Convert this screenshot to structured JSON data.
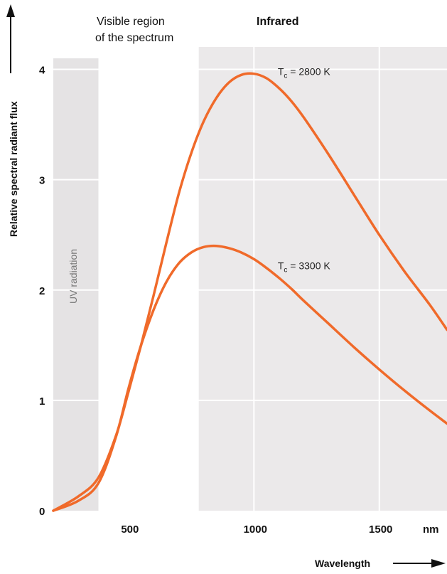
{
  "chart_data": {
    "type": "line",
    "xlabel": "Wavelength",
    "ylabel": "Relative spectral radiant flux",
    "x_unit": "nm",
    "xlim": [
      200,
      1770
    ],
    "ylim": [
      0,
      4.1
    ],
    "xticks": [
      500,
      1000,
      1500
    ],
    "yticks": [
      0,
      1,
      2,
      3,
      4
    ],
    "grid": true,
    "legend": "none",
    "colors": {
      "curve": "#f06a2a",
      "infrared_band": "#ebe9ea",
      "uv_band": "#e5e3e4",
      "visible_band": "#ffffff",
      "grid": "#ffffff"
    },
    "regions": [
      {
        "label": "UV radiation",
        "from": 200,
        "to": 380
      },
      {
        "label": "Visible region of the spectrum",
        "label_lines": [
          "Visible region",
          "of the spectrum"
        ],
        "from": 380,
        "to": 780
      },
      {
        "label": "Infrared",
        "from": 780,
        "to": 1770
      }
    ],
    "series": [
      {
        "name": "Tc = 2800 K",
        "label_parts": {
          "prefix": "T",
          "sub": "c",
          "suffix": " = 2800 K"
        },
        "label_at": {
          "x": 1095,
          "y": 3.95
        },
        "x": [
          200,
          300,
          380,
          450,
          500,
          550,
          600,
          650,
          700,
          750,
          800,
          850,
          900,
          950,
          1000,
          1050,
          1100,
          1150,
          1200,
          1300,
          1400,
          1500,
          1600,
          1700,
          1770
        ],
        "y": [
          0,
          0.13,
          0.3,
          0.68,
          1.08,
          1.5,
          1.95,
          2.42,
          2.87,
          3.24,
          3.53,
          3.74,
          3.88,
          3.95,
          3.96,
          3.92,
          3.83,
          3.71,
          3.56,
          3.22,
          2.86,
          2.5,
          2.17,
          1.87,
          1.64
        ]
      },
      {
        "name": "Tc = 3300 K",
        "label_parts": {
          "prefix": "T",
          "sub": "c",
          "suffix": " = 3300 K"
        },
        "label_at": {
          "x": 1095,
          "y": 2.19
        },
        "x": [
          200,
          300,
          380,
          450,
          500,
          550,
          600,
          650,
          700,
          750,
          800,
          850,
          900,
          950,
          1000,
          1050,
          1100,
          1150,
          1200,
          1300,
          1400,
          1500,
          1600,
          1700,
          1770
        ],
        "y": [
          0,
          0.09,
          0.25,
          0.67,
          1.11,
          1.5,
          1.82,
          2.07,
          2.24,
          2.34,
          2.39,
          2.4,
          2.38,
          2.34,
          2.28,
          2.2,
          2.11,
          2.01,
          1.9,
          1.69,
          1.48,
          1.28,
          1.09,
          0.91,
          0.79
        ]
      }
    ]
  }
}
